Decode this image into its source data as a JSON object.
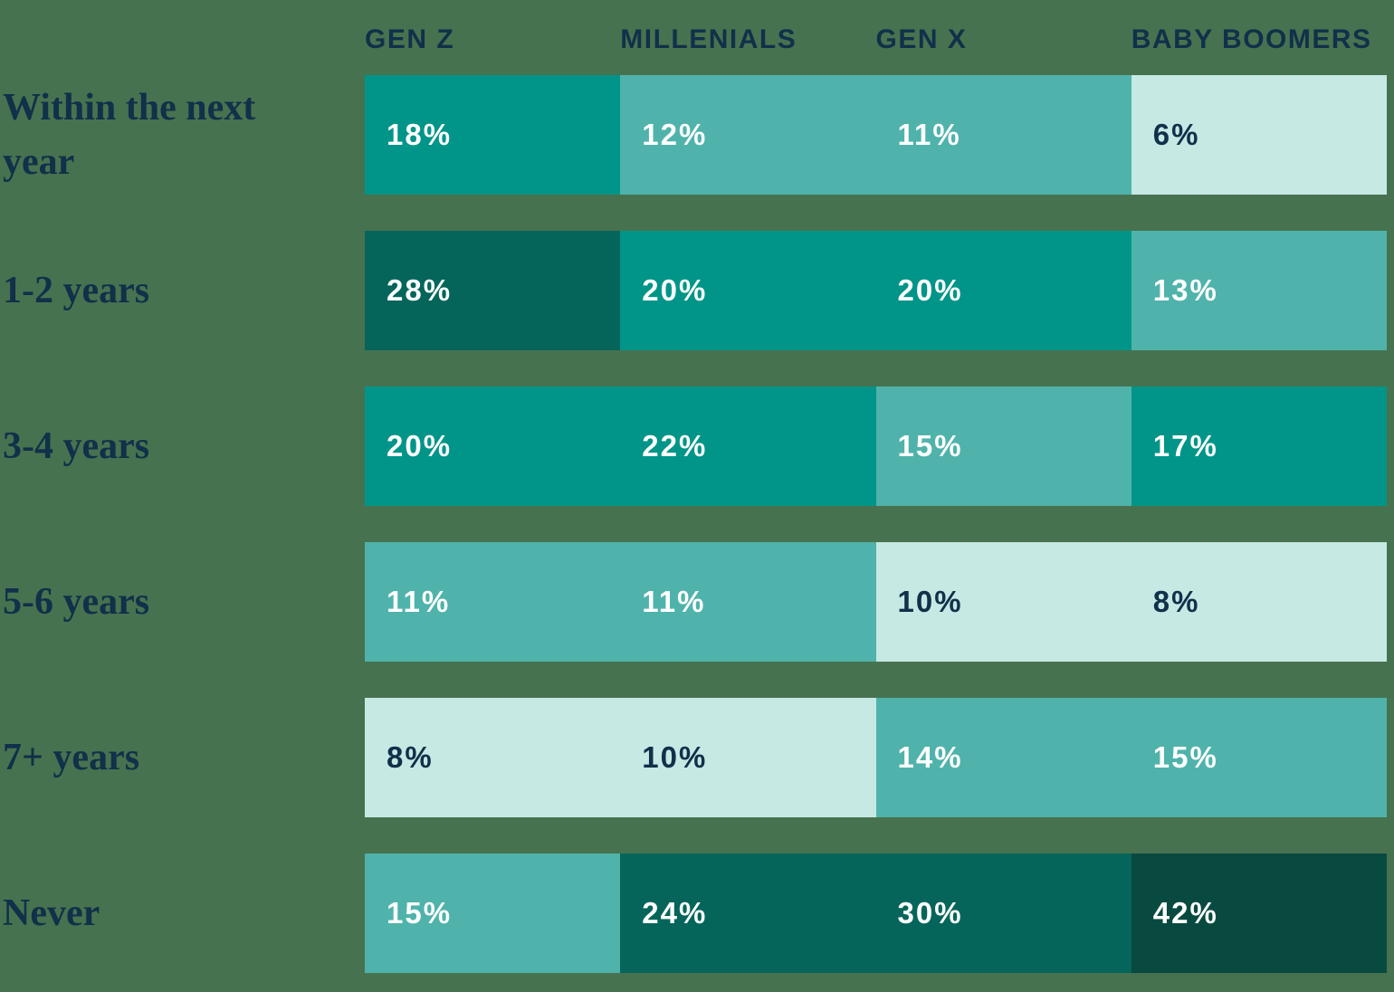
{
  "chart_data": {
    "type": "heatmap",
    "title": "",
    "description": "Heatmap table of percentages by generation and time horizon",
    "categories": [
      "GEN Z",
      "MILLENIALS",
      "GEN X",
      "BABY BOOMERS"
    ],
    "row_labels": [
      "Within the next year",
      "1-2 years",
      "3-4 years",
      "5-6 years",
      "7+ years",
      "Never"
    ],
    "value_suffix": "%",
    "rows": [
      {
        "label": "Within the next year",
        "values": [
          18,
          12,
          11,
          6
        ],
        "display": [
          "18%",
          "12%",
          "11%",
          "6%"
        ],
        "levels": [
          "base",
          "mid",
          "mid",
          "light"
        ]
      },
      {
        "label": "1-2 years",
        "values": [
          28,
          20,
          20,
          13
        ],
        "display": [
          "28%",
          "20%",
          "20%",
          "13%"
        ],
        "levels": [
          "dark",
          "base",
          "base",
          "mid"
        ]
      },
      {
        "label": "3-4 years",
        "values": [
          20,
          22,
          15,
          17
        ],
        "display": [
          "20%",
          "22%",
          "15%",
          "17%"
        ],
        "levels": [
          "base",
          "base",
          "mid",
          "base"
        ]
      },
      {
        "label": "5-6 years",
        "values": [
          11,
          11,
          10,
          8
        ],
        "display": [
          "11%",
          "11%",
          "10%",
          "8%"
        ],
        "levels": [
          "mid",
          "mid",
          "light",
          "light"
        ]
      },
      {
        "label": "7+ years",
        "values": [
          8,
          10,
          14,
          15
        ],
        "display": [
          "8%",
          "10%",
          "14%",
          "15%"
        ],
        "levels": [
          "light",
          "light",
          "mid",
          "mid"
        ]
      },
      {
        "label": "Never",
        "values": [
          15,
          24,
          30,
          42
        ],
        "display": [
          "15%",
          "24%",
          "30%",
          "42%"
        ],
        "levels": [
          "mid",
          "dark",
          "dark",
          "darkest"
        ]
      }
    ],
    "colors": {
      "background": "#47724F",
      "heading_text": "#11304A",
      "value_text_on_dark": "#FFFFFF",
      "value_text_on_light": "#11304A",
      "palette": {
        "darkest": "#094A40",
        "dark": "#05655A",
        "base": "#009588",
        "mid": "#4FB3AB",
        "light": "#C6E9E4"
      }
    },
    "layout": {
      "legend": "none",
      "grid": "off",
      "value_alignment": "left-inside-cell",
      "header_position": "top"
    }
  }
}
